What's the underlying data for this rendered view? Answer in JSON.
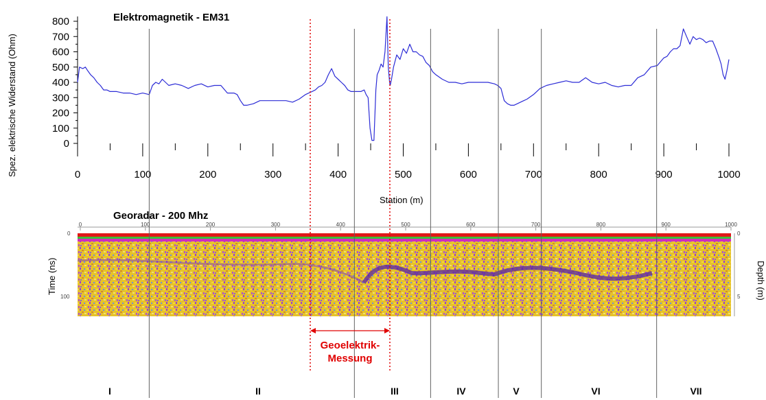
{
  "em_panel": {
    "title": "Elektromagnetik - EM31",
    "ylabel": "Spez. elektrische Widerstand (Ohm)",
    "xlabel": "Station (m)"
  },
  "gpr_panel": {
    "title": "Georadar - 200 Mhz",
    "ylabel_left": "Time (ns)",
    "ylabel_right": "Depth (m)",
    "left_ticks": [
      "0",
      "100"
    ],
    "right_ticks": [
      "0",
      "5"
    ],
    "top_ticks": [
      "0",
      "100",
      "200",
      "300",
      "400",
      "500",
      "600",
      "700",
      "800",
      "900",
      "1000"
    ]
  },
  "annotation": {
    "line1": "Geoelektrik-",
    "line2": "Messung",
    "color": "#e00000"
  },
  "sections": [
    "I",
    "II",
    "III",
    "IV",
    "V",
    "VI",
    "VII"
  ],
  "colors": {
    "series": "#2b2bd6",
    "divider": "#606060",
    "marker": "#e00000"
  },
  "chart_data": {
    "type": "line",
    "title": "Elektromagnetik - EM31",
    "xlabel": "Station (m)",
    "ylabel": "Spez. elektrische Widerstand (Ohm)",
    "xlim": [
      0,
      1000
    ],
    "ylim": [
      0,
      850
    ],
    "xticks": [
      0,
      100,
      200,
      300,
      400,
      500,
      600,
      700,
      800,
      900,
      1000
    ],
    "yticks": [
      0,
      100,
      200,
      300,
      400,
      500,
      600,
      700,
      800
    ],
    "section_boundaries": [
      110,
      425,
      542,
      646,
      712,
      889
    ],
    "geoelektrik_range": [
      358,
      480
    ],
    "series": [
      {
        "x": [
          0,
          3,
          8,
          12,
          15,
          20,
          25,
          30,
          35,
          40,
          45,
          50,
          60,
          70,
          80,
          90,
          100,
          110,
          115,
          120,
          125,
          130,
          140,
          150,
          160,
          170,
          180,
          190,
          200,
          210,
          220,
          230,
          240,
          245,
          250,
          255,
          260,
          270,
          280,
          290,
          300,
          310,
          320,
          330,
          340,
          350,
          355,
          360,
          365,
          370,
          375,
          380,
          385,
          390,
          395,
          400,
          405,
          410,
          415,
          420,
          425,
          430,
          435,
          440,
          443,
          446,
          449,
          452,
          455,
          458,
          460,
          463,
          466,
          469,
          472,
          475,
          477,
          479,
          480,
          482,
          485,
          490,
          495,
          500,
          505,
          510,
          515,
          520,
          525,
          530,
          535,
          540,
          545,
          550,
          560,
          570,
          580,
          590,
          600,
          610,
          620,
          630,
          640,
          645,
          650,
          655,
          660,
          665,
          670,
          675,
          680,
          690,
          700,
          710,
          720,
          730,
          740,
          750,
          760,
          770,
          780,
          790,
          800,
          810,
          820,
          830,
          840,
          850,
          860,
          870,
          880,
          890,
          900,
          905,
          910,
          915,
          920,
          925,
          930,
          935,
          940,
          945,
          950,
          955,
          960,
          965,
          970,
          975,
          980,
          985,
          988,
          991,
          994,
          997,
          1000
        ],
        "y": [
          400,
          500,
          490,
          500,
          480,
          450,
          430,
          400,
          380,
          350,
          350,
          340,
          340,
          330,
          330,
          320,
          330,
          320,
          380,
          400,
          390,
          420,
          380,
          390,
          380,
          360,
          380,
          390,
          370,
          380,
          380,
          330,
          330,
          320,
          280,
          250,
          250,
          260,
          280,
          280,
          280,
          280,
          280,
          270,
          290,
          320,
          330,
          340,
          350,
          370,
          380,
          400,
          450,
          490,
          440,
          420,
          400,
          380,
          350,
          340,
          340,
          340,
          340,
          350,
          320,
          300,
          100,
          20,
          20,
          350,
          450,
          480,
          520,
          500,
          600,
          830,
          500,
          400,
          380,
          420,
          500,
          580,
          550,
          620,
          590,
          650,
          600,
          600,
          580,
          570,
          530,
          510,
          470,
          450,
          420,
          400,
          400,
          390,
          400,
          400,
          400,
          400,
          390,
          380,
          360,
          280,
          260,
          250,
          250,
          260,
          270,
          290,
          320,
          360,
          380,
          390,
          400,
          410,
          400,
          400,
          430,
          400,
          390,
          400,
          380,
          370,
          380,
          380,
          430,
          450,
          500,
          510,
          560,
          570,
          600,
          620,
          620,
          640,
          750,
          700,
          650,
          700,
          680,
          690,
          680,
          660,
          670,
          670,
          620,
          560,
          520,
          450,
          420,
          480,
          550
        ]
      }
    ]
  }
}
